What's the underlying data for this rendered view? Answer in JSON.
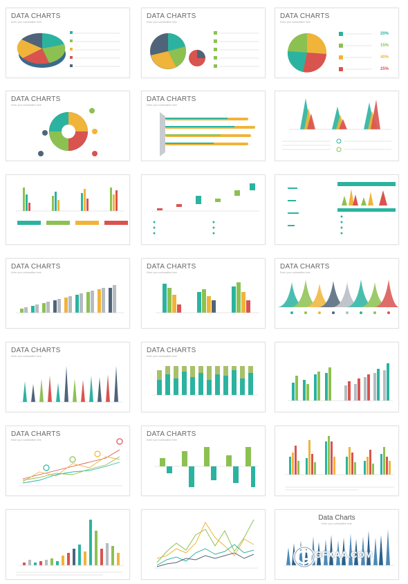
{
  "slide_title": "DATA CHARTS",
  "slide_subtitle": "Enter your subheadline here",
  "centered_title": "Data Charts",
  "centered_subtitle": "Enter your subheadline here",
  "percents_r1c3": [
    "20%",
    "15%",
    "40%",
    "25%"
  ],
  "watermark": "GFXAA.COM",
  "colors": {
    "teal": "#2bb3a0",
    "green": "#8cc152",
    "yellow": "#f0b43a",
    "red": "#d9534f",
    "slate": "#4f6478",
    "olive": "#a8c06a",
    "grey": "#b5bcc2"
  }
}
